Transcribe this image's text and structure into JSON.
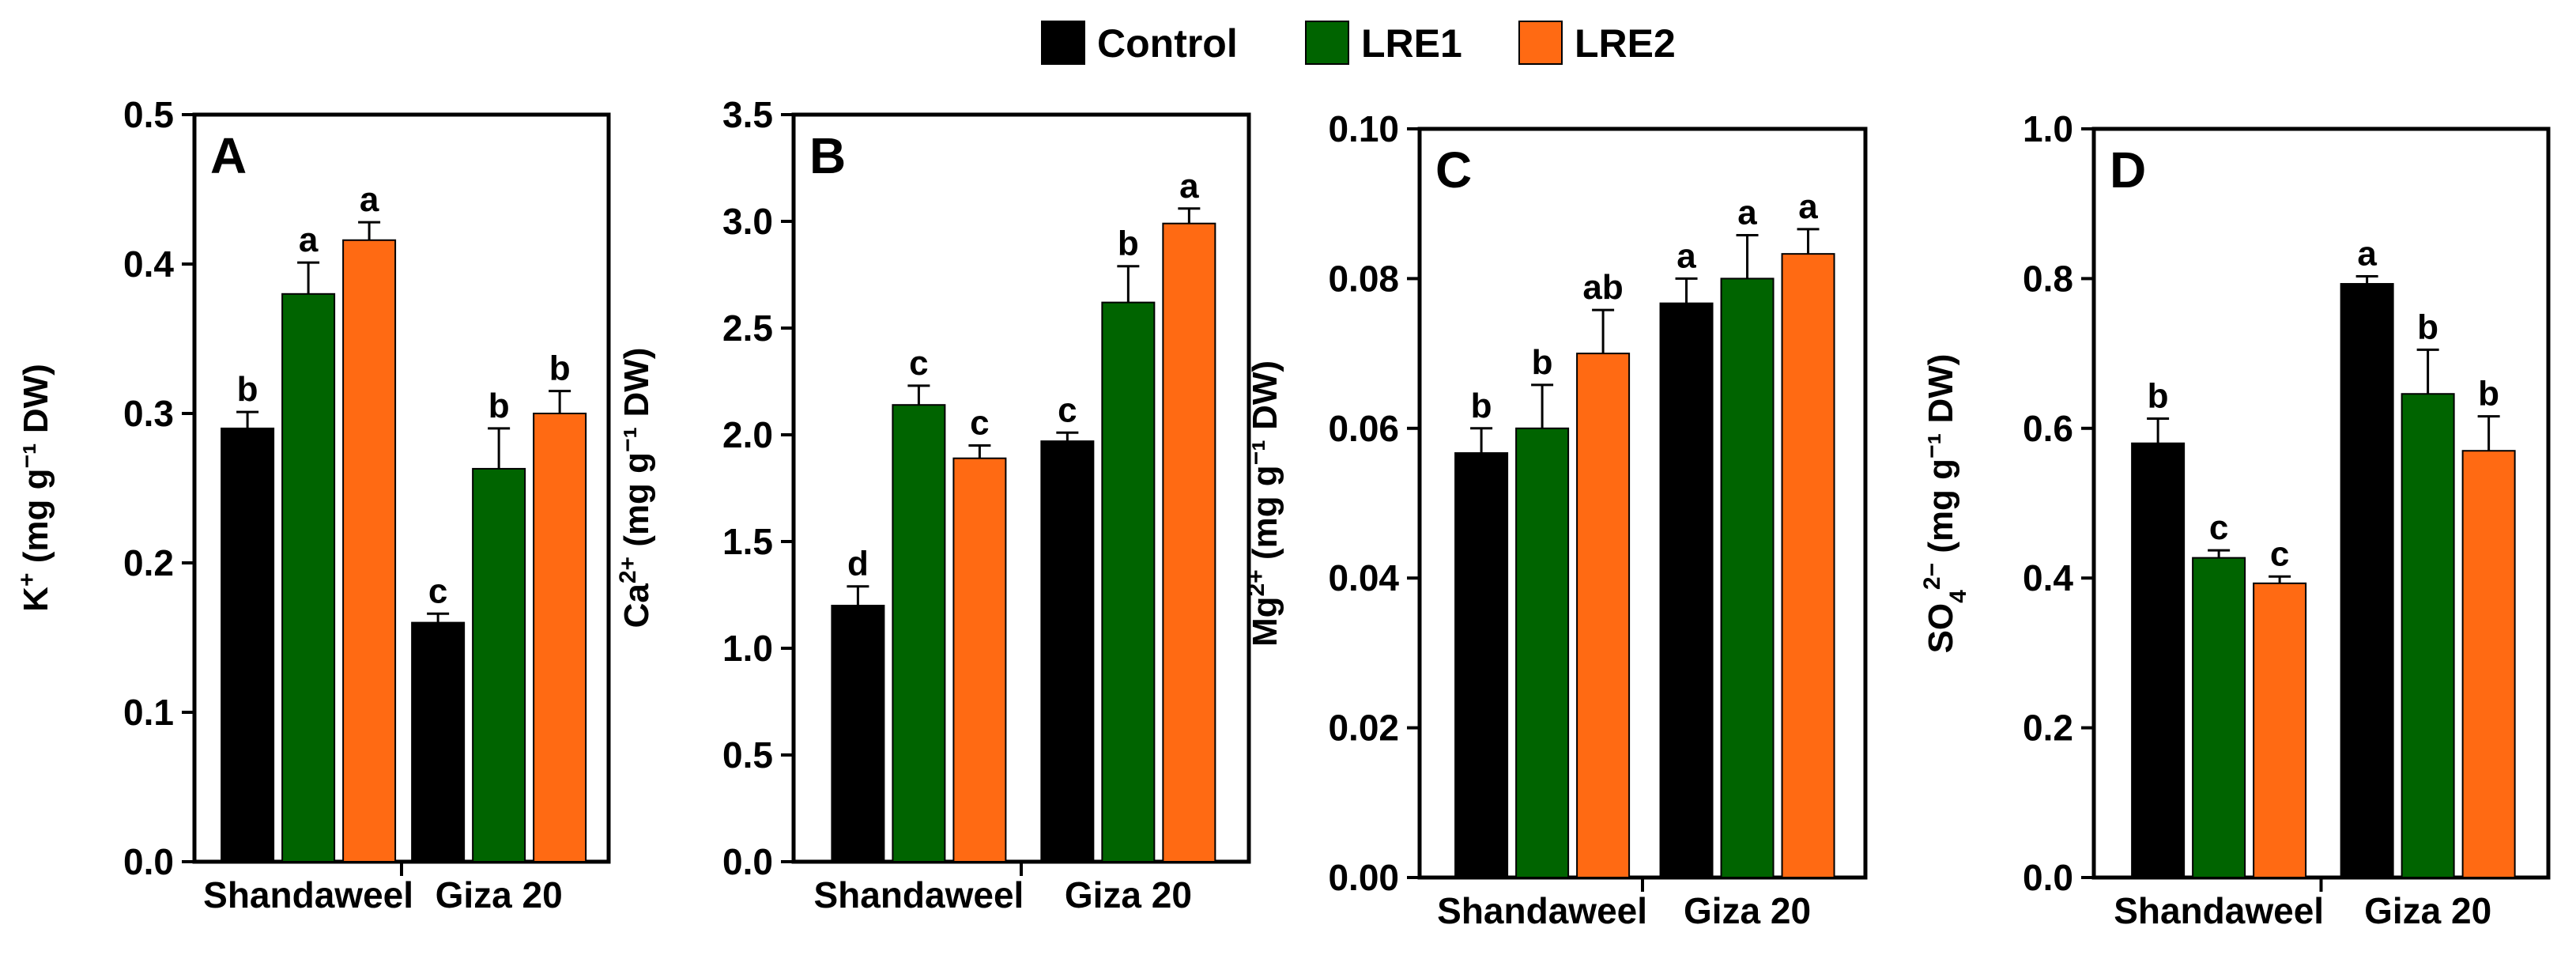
{
  "legend": [
    {
      "name": "Control",
      "color": "#000000"
    },
    {
      "name": "LRE1",
      "color": "#006400"
    },
    {
      "name": "LRE2",
      "color": "#FF6A13"
    }
  ],
  "chart_data": [
    {
      "type": "bar",
      "panel": "A",
      "ylabel": "K⁺ (mg g⁻¹ DW)",
      "ylim": [
        0,
        0.5
      ],
      "yticks": [
        "0.0",
        "0.1",
        "0.2",
        "0.3",
        "0.4",
        "0.5"
      ],
      "categories": [
        "Shandaweel",
        "Giza 20"
      ],
      "series": [
        {
          "name": "Control",
          "values": [
            0.29,
            0.16
          ],
          "errors": [
            0.011,
            0.006
          ],
          "letters": [
            "b",
            "c"
          ]
        },
        {
          "name": "LRE1",
          "values": [
            0.38,
            0.263
          ],
          "errors": [
            0.021,
            0.027
          ],
          "letters": [
            "a",
            "b"
          ]
        },
        {
          "name": "LRE2",
          "values": [
            0.416,
            0.3
          ],
          "errors": [
            0.012,
            0.015
          ],
          "letters": [
            "a",
            "b"
          ]
        }
      ]
    },
    {
      "type": "bar",
      "panel": "B",
      "ylabel": "Ca²⁺ (mg g⁻¹ DW)",
      "ylim": [
        0,
        3.5
      ],
      "yticks": [
        "0.0",
        "0.5",
        "1.0",
        "1.5",
        "2.0",
        "2.5",
        "3.0",
        "3.5"
      ],
      "categories": [
        "Shandaweel",
        "Giza 20"
      ],
      "series": [
        {
          "name": "Control",
          "values": [
            1.2,
            1.97
          ],
          "errors": [
            0.09,
            0.04
          ],
          "letters": [
            "d",
            "c"
          ]
        },
        {
          "name": "LRE1",
          "values": [
            2.14,
            2.62
          ],
          "errors": [
            0.09,
            0.17
          ],
          "letters": [
            "c",
            "b"
          ]
        },
        {
          "name": "LRE2",
          "values": [
            1.89,
            2.99
          ],
          "errors": [
            0.06,
            0.07
          ],
          "letters": [
            "c",
            "a"
          ]
        }
      ]
    },
    {
      "type": "bar",
      "panel": "C",
      "ylabel": "Mg²⁺ (mg g⁻¹ DW)",
      "ylim": [
        0,
        0.1
      ],
      "yticks": [
        "0.00",
        "0.02",
        "0.04",
        "0.06",
        "0.08",
        "0.10"
      ],
      "categories": [
        "Shandaweel",
        "Giza 20"
      ],
      "series": [
        {
          "name": "Control",
          "values": [
            0.0567,
            0.0767
          ],
          "errors": [
            0.0033,
            0.0033
          ],
          "letters": [
            "b",
            "a"
          ]
        },
        {
          "name": "LRE1",
          "values": [
            0.06,
            0.08
          ],
          "errors": [
            0.0058,
            0.0058
          ],
          "letters": [
            "b",
            "a"
          ]
        },
        {
          "name": "LRE2",
          "values": [
            0.07,
            0.0833
          ],
          "errors": [
            0.0058,
            0.0033
          ],
          "letters": [
            "ab",
            "a"
          ]
        }
      ]
    },
    {
      "type": "bar",
      "panel": "D",
      "ylabel": "SO₄²⁻ (mg g⁻¹ DW)",
      "ylim": [
        0,
        1.0
      ],
      "yticks": [
        "0.0",
        "0.2",
        "0.4",
        "0.6",
        "0.8",
        "1.0"
      ],
      "categories": [
        "Shandaweel",
        "Giza 20"
      ],
      "series": [
        {
          "name": "Control",
          "values": [
            0.58,
            0.793
          ],
          "errors": [
            0.033,
            0.01
          ],
          "letters": [
            "b",
            "a"
          ]
        },
        {
          "name": "LRE1",
          "values": [
            0.427,
            0.646
          ],
          "errors": [
            0.01,
            0.059
          ],
          "letters": [
            "c",
            "b"
          ]
        },
        {
          "name": "LRE2",
          "values": [
            0.393,
            0.57
          ],
          "errors": [
            0.009,
            0.046
          ],
          "letters": [
            "c",
            "b"
          ]
        }
      ]
    }
  ]
}
